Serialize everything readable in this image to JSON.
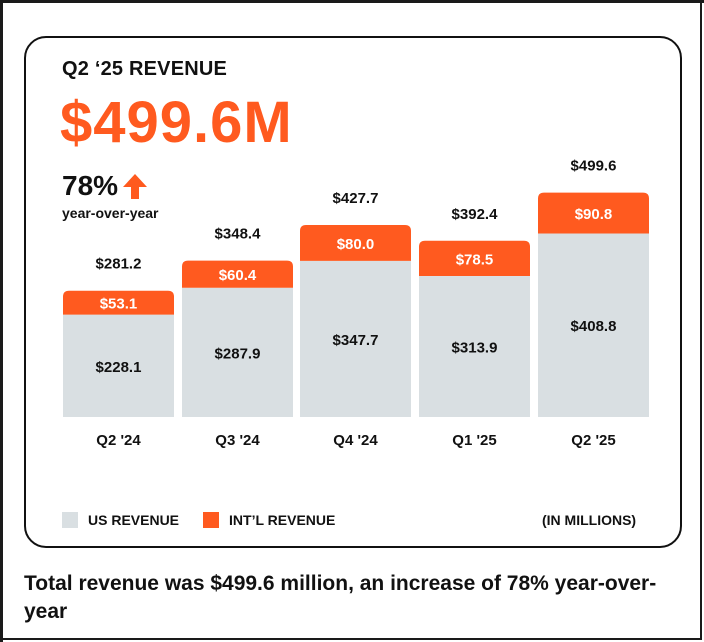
{
  "header": {
    "title": "Q2 ‘25 REVENUE",
    "total": "$499.6M",
    "yoy_percent": "78%",
    "yoy_label": "year-over-year"
  },
  "colors": {
    "us": "#d9dfe2",
    "intl": "#ff5a1f",
    "text": "#111111"
  },
  "legend": {
    "us_label": "US REVENUE",
    "intl_label": "INT’L REVENUE",
    "units": "(IN MILLIONS)"
  },
  "caption": "Total revenue was $499.6 million, an increase of 78% year-over-year",
  "chart_data": {
    "type": "bar",
    "stacked": true,
    "categories": [
      "Q2 '24",
      "Q3 '24",
      "Q4 '24",
      "Q1 '25",
      "Q2 '25"
    ],
    "series": [
      {
        "name": "US REVENUE",
        "values": [
          228.1,
          287.9,
          347.7,
          313.9,
          408.8
        ]
      },
      {
        "name": "INT’L REVENUE",
        "values": [
          53.1,
          60.4,
          80.0,
          78.5,
          90.8
        ]
      }
    ],
    "totals": [
      "$281.2",
      "$348.4",
      "$427.7",
      "$392.4",
      "$499.6"
    ],
    "us_labels": [
      "$228.1",
      "$287.9",
      "$347.7",
      "$313.9",
      "$408.8"
    ],
    "intl_labels": [
      "$53.1",
      "$60.4",
      "$80.0",
      "$78.5",
      "$90.8"
    ],
    "units": "(IN MILLIONS)",
    "ylim": [
      0,
      560
    ]
  }
}
